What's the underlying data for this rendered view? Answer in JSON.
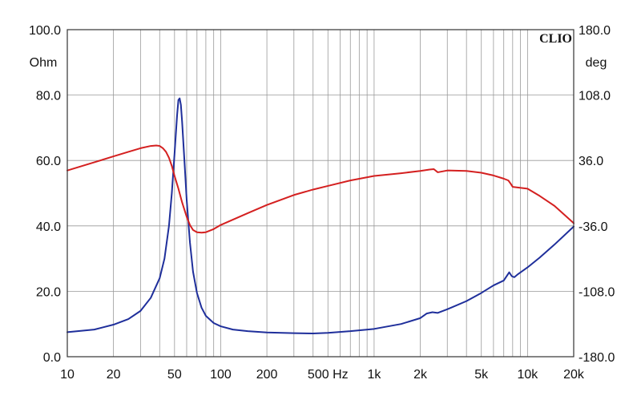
{
  "chart_data": {
    "type": "line",
    "brand": "CLIO",
    "x_scale": "log",
    "xlim": [
      10,
      20000
    ],
    "x_ticks": [
      {
        "value": 10,
        "label": "10"
      },
      {
        "value": 20,
        "label": "20"
      },
      {
        "value": 50,
        "label": "50"
      },
      {
        "value": 100,
        "label": "100"
      },
      {
        "value": 200,
        "label": "200"
      },
      {
        "value": 500,
        "label": "500 Hz"
      },
      {
        "value": 1000,
        "label": "1k"
      },
      {
        "value": 2000,
        "label": "2k"
      },
      {
        "value": 5000,
        "label": "5k"
      },
      {
        "value": 10000,
        "label": "10k"
      },
      {
        "value": 20000,
        "label": "20k"
      }
    ],
    "y_left": {
      "unit": "Ohm",
      "lim": [
        0,
        100
      ],
      "ticks": [
        {
          "value": 0,
          "label": "0.0"
        },
        {
          "value": 20,
          "label": "20.0"
        },
        {
          "value": 40,
          "label": "40.0"
        },
        {
          "value": 60,
          "label": "60.0"
        },
        {
          "value": 80,
          "label": "80.0"
        },
        {
          "value": 100,
          "label": "100.0"
        }
      ]
    },
    "y_right": {
      "unit": "deg",
      "lim": [
        -180,
        180
      ],
      "ticks": [
        {
          "value": -180,
          "label": "-180.0"
        },
        {
          "value": -108,
          "label": "-108.0"
        },
        {
          "value": -36,
          "label": "-36.0"
        },
        {
          "value": 36,
          "label": "36.0"
        },
        {
          "value": 108,
          "label": "108.0"
        },
        {
          "value": 180,
          "label": "180.0"
        }
      ]
    },
    "grid": true,
    "colors": {
      "grid": "#999999",
      "frame": "#333333"
    },
    "series": [
      {
        "axis": "left",
        "color": "#1f2f9b",
        "x": [
          10,
          15,
          20,
          25,
          30,
          35,
          40,
          43,
          46,
          48,
          50,
          52,
          53,
          54,
          55,
          56,
          58,
          60,
          63,
          66,
          70,
          75,
          80,
          90,
          100,
          120,
          150,
          200,
          300,
          400,
          500,
          700,
          1000,
          1500,
          2000,
          2200,
          2400,
          2600,
          3000,
          4000,
          5000,
          6000,
          7000,
          7600,
          7900,
          8200,
          8700,
          10000,
          12000,
          15000,
          20000
        ],
        "y": [
          7.5,
          8.3,
          9.8,
          11.5,
          14.0,
          18.0,
          24.0,
          30.0,
          40.0,
          50.0,
          62.0,
          74.0,
          78.5,
          79.0,
          77.0,
          72.0,
          60.0,
          48.0,
          35.0,
          26.0,
          19.5,
          15.0,
          12.5,
          10.3,
          9.3,
          8.3,
          7.8,
          7.4,
          7.2,
          7.1,
          7.3,
          7.8,
          8.5,
          10.0,
          11.8,
          13.2,
          13.6,
          13.4,
          14.5,
          17.0,
          19.5,
          21.8,
          23.3,
          25.8,
          24.6,
          24.3,
          25.3,
          27.3,
          30.3,
          34.3,
          39.8
        ]
      },
      {
        "axis": "right",
        "color": "#d42020",
        "x": [
          10,
          15,
          20,
          25,
          30,
          35,
          38,
          40,
          42,
          44,
          46,
          48,
          50,
          53,
          56,
          60,
          63,
          66,
          70,
          75,
          80,
          90,
          100,
          150,
          200,
          300,
          400,
          500,
          700,
          1000,
          1500,
          2000,
          2300,
          2450,
          2600,
          3000,
          4000,
          5000,
          6000,
          7000,
          7500,
          7800,
          8000,
          10000,
          12000,
          15000,
          20000
        ],
        "y": [
          25.0,
          34.0,
          40.5,
          45.5,
          49.5,
          52.0,
          52.5,
          52.0,
          49.5,
          45.5,
          39.0,
          30.0,
          19.0,
          5.0,
          -10.0,
          -26.0,
          -35.0,
          -40.5,
          -43.0,
          -43.5,
          -43.0,
          -39.5,
          -35.0,
          -22.0,
          -13.0,
          -2.0,
          4.0,
          8.0,
          14.0,
          19.0,
          22.0,
          24.5,
          26.0,
          26.5,
          23.0,
          25.0,
          24.5,
          22.5,
          19.5,
          16.0,
          14.0,
          10.0,
          7.0,
          5.0,
          -3.0,
          -14.0,
          -33.0
        ]
      }
    ]
  }
}
